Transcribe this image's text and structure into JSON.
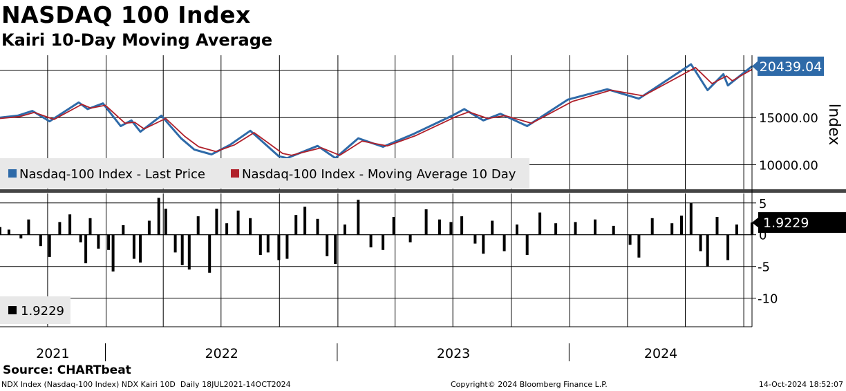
{
  "header": {
    "title": "NASDAQ 100 Index",
    "subtitle": "Kairi 10-Day Moving Average"
  },
  "footer": {
    "source": "Source: CHARTbeat",
    "left": "NDX Index (Nasdaq-100 Index) NDX Kairi 10D  Daily 18JUL2021-14OCT2024",
    "center": "Copyright© 2024 Bloomberg Finance L.P.",
    "right": "14-Oct-2024 18:52:07"
  },
  "colors": {
    "price": "#2e6aa8",
    "moving_average": "#b0202a",
    "kairi": "#000000",
    "grid": "#000000",
    "badge": "#2e6aa8"
  },
  "chart_data": [
    {
      "type": "line",
      "x_axis": "date",
      "xlim": [
        "2021-07-18",
        "2024-10-14"
      ],
      "ylabel": "Index",
      "y_ticks": [
        10000,
        15000
      ],
      "y_tick_labels": [
        "10000.00",
        "15000.00"
      ],
      "ylim": [
        7400,
        21600
      ],
      "grid": true,
      "legend_position": "bottom-left",
      "last_value_label": "20439.04",
      "series": [
        {
          "name": "Nasdaq-100 Index - Last Price",
          "points": [
            [
              "2021-07-18",
              15000
            ],
            [
              "2021-08-15",
              15200
            ],
            [
              "2021-09-07",
              15700
            ],
            [
              "2021-10-04",
              14600
            ],
            [
              "2021-11-19",
              16600
            ],
            [
              "2021-12-03",
              15900
            ],
            [
              "2021-12-27",
              16500
            ],
            [
              "2022-01-24",
              14100
            ],
            [
              "2022-02-10",
              14700
            ],
            [
              "2022-02-24",
              13500
            ],
            [
              "2022-03-29",
              15200
            ],
            [
              "2022-04-29",
              12800
            ],
            [
              "2022-05-20",
              11600
            ],
            [
              "2022-06-16",
              11100
            ],
            [
              "2022-07-15",
              12100
            ],
            [
              "2022-08-16",
              13600
            ],
            [
              "2022-09-30",
              10900
            ],
            [
              "2022-10-13",
              10700
            ],
            [
              "2022-11-30",
              12000
            ],
            [
              "2022-12-28",
              10700
            ],
            [
              "2023-02-02",
              12800
            ],
            [
              "2023-03-13",
              11900
            ],
            [
              "2023-04-28",
              13200
            ],
            [
              "2023-06-30",
              15200
            ],
            [
              "2023-07-19",
              15900
            ],
            [
              "2023-08-18",
              14700
            ],
            [
              "2023-09-14",
              15400
            ],
            [
              "2023-10-26",
              14100
            ],
            [
              "2023-12-29",
              16900
            ],
            [
              "2024-02-29",
              18000
            ],
            [
              "2024-04-19",
              17000
            ],
            [
              "2024-07-10",
              20650
            ],
            [
              "2024-08-05",
              17900
            ],
            [
              "2024-08-30",
              19600
            ],
            [
              "2024-09-06",
              18400
            ],
            [
              "2024-10-14",
              20439
            ]
          ]
        },
        {
          "name": "Nasdaq-100 Index - Moving Average 10 Day",
          "points": [
            [
              "2021-07-18",
              14900
            ],
            [
              "2021-08-18",
              15100
            ],
            [
              "2021-09-10",
              15550
            ],
            [
              "2021-10-11",
              14800
            ],
            [
              "2021-11-24",
              16400
            ],
            [
              "2021-12-08",
              16000
            ],
            [
              "2021-12-31",
              16300
            ],
            [
              "2022-01-31",
              14400
            ],
            [
              "2022-02-15",
              14500
            ],
            [
              "2022-03-02",
              13800
            ],
            [
              "2022-04-05",
              14900
            ],
            [
              "2022-05-05",
              13000
            ],
            [
              "2022-05-27",
              11900
            ],
            [
              "2022-06-23",
              11400
            ],
            [
              "2022-07-22",
              12100
            ],
            [
              "2022-08-22",
              13400
            ],
            [
              "2022-10-06",
              11200
            ],
            [
              "2022-10-20",
              11000
            ],
            [
              "2022-12-06",
              11800
            ],
            [
              "2023-01-04",
              11000
            ],
            [
              "2023-02-08",
              12500
            ],
            [
              "2023-03-20",
              12000
            ],
            [
              "2023-05-04",
              13100
            ],
            [
              "2023-07-06",
              15100
            ],
            [
              "2023-07-26",
              15600
            ],
            [
              "2023-08-25",
              14900
            ],
            [
              "2023-09-21",
              15200
            ],
            [
              "2023-11-02",
              14400
            ],
            [
              "2024-01-05",
              16700
            ],
            [
              "2024-03-06",
              17900
            ],
            [
              "2024-04-26",
              17300
            ],
            [
              "2024-07-17",
              20300
            ],
            [
              "2024-08-12",
              18600
            ],
            [
              "2024-09-04",
              19400
            ],
            [
              "2024-09-13",
              18900
            ],
            [
              "2024-10-14",
              20100
            ]
          ]
        }
      ]
    },
    {
      "type": "bar",
      "x_axis": "date",
      "xlim": [
        "2021-07-18",
        "2024-10-14"
      ],
      "y_ticks": [
        5,
        0,
        -5,
        -10
      ],
      "ylim": [
        -14.5,
        6.5
      ],
      "grid": true,
      "legend_position": "bottom-left",
      "last_value_label": "1.9229",
      "x_tick_labels": [
        "2021",
        "2022",
        "2023",
        "2024"
      ],
      "series": [
        {
          "name": "1.9229",
          "points": [
            [
              "2021-07-18",
              1.2
            ],
            [
              "2021-08-01",
              0.8
            ],
            [
              "2021-08-20",
              -0.6
            ],
            [
              "2021-09-01",
              2.4
            ],
            [
              "2021-09-20",
              -1.8
            ],
            [
              "2021-10-04",
              -3.5
            ],
            [
              "2021-10-20",
              2.0
            ],
            [
              "2021-11-05",
              3.2
            ],
            [
              "2021-11-22",
              -1.2
            ],
            [
              "2021-11-30",
              -4.5
            ],
            [
              "2021-12-07",
              2.6
            ],
            [
              "2021-12-20",
              -2.2
            ],
            [
              "2022-01-05",
              -2.4
            ],
            [
              "2022-01-12",
              -5.8
            ],
            [
              "2022-01-28",
              1.5
            ],
            [
              "2022-02-14",
              -3.8
            ],
            [
              "2022-02-24",
              -4.4
            ],
            [
              "2022-03-10",
              2.2
            ],
            [
              "2022-03-25",
              5.8
            ],
            [
              "2022-04-05",
              4.1
            ],
            [
              "2022-04-20",
              -2.8
            ],
            [
              "2022-05-01",
              -4.8
            ],
            [
              "2022-05-12",
              -5.5
            ],
            [
              "2022-05-26",
              2.9
            ],
            [
              "2022-06-13",
              -6.0
            ],
            [
              "2022-06-24",
              4.1
            ],
            [
              "2022-07-10",
              1.8
            ],
            [
              "2022-07-28",
              3.8
            ],
            [
              "2022-08-16",
              2.6
            ],
            [
              "2022-09-01",
              -3.2
            ],
            [
              "2022-09-13",
              -2.8
            ],
            [
              "2022-09-30",
              -4.0
            ],
            [
              "2022-10-13",
              -3.8
            ],
            [
              "2022-10-27",
              3.1
            ],
            [
              "2022-11-10",
              4.4
            ],
            [
              "2022-11-30",
              2.5
            ],
            [
              "2022-12-15",
              -3.4
            ],
            [
              "2022-12-28",
              -4.6
            ],
            [
              "2023-01-12",
              1.6
            ],
            [
              "2023-02-02",
              5.5
            ],
            [
              "2023-02-22",
              -2.0
            ],
            [
              "2023-03-13",
              -2.4
            ],
            [
              "2023-03-30",
              2.8
            ],
            [
              "2023-04-25",
              -1.2
            ],
            [
              "2023-05-20",
              4.0
            ],
            [
              "2023-06-10",
              2.4
            ],
            [
              "2023-06-28",
              2.0
            ],
            [
              "2023-07-15",
              2.9
            ],
            [
              "2023-08-05",
              -1.4
            ],
            [
              "2023-08-18",
              -3.0
            ],
            [
              "2023-09-01",
              2.2
            ],
            [
              "2023-09-20",
              -2.6
            ],
            [
              "2023-10-10",
              1.6
            ],
            [
              "2023-10-26",
              -3.2
            ],
            [
              "2023-11-15",
              3.5
            ],
            [
              "2023-12-10",
              1.8
            ],
            [
              "2024-01-10",
              2.0
            ],
            [
              "2024-02-10",
              2.4
            ],
            [
              "2024-03-10",
              1.4
            ],
            [
              "2024-04-05",
              -1.6
            ],
            [
              "2024-04-19",
              -3.6
            ],
            [
              "2024-05-10",
              2.6
            ],
            [
              "2024-06-10",
              1.8
            ],
            [
              "2024-06-25",
              3.0
            ],
            [
              "2024-07-10",
              5.0
            ],
            [
              "2024-07-25",
              -2.6
            ],
            [
              "2024-08-05",
              -5.0
            ],
            [
              "2024-08-20",
              2.8
            ],
            [
              "2024-09-06",
              -4.0
            ],
            [
              "2024-09-20",
              1.6
            ],
            [
              "2024-10-14",
              1.9229
            ]
          ]
        }
      ]
    }
  ]
}
